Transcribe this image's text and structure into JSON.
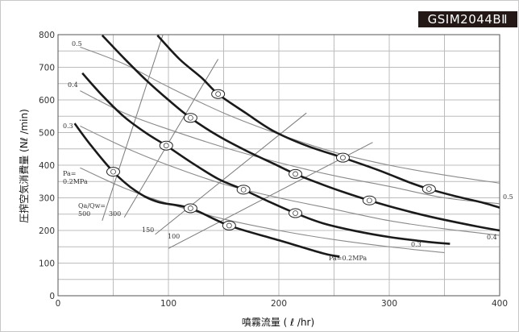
{
  "badge": "GSIM2044BⅡ",
  "chart_data": {
    "type": "line",
    "title": "",
    "xlabel": "噴霧流量 ( ℓ /hr)",
    "ylabel": "圧搾空気消費量 (Nℓ /min)",
    "xlim": [
      0,
      400
    ],
    "ylim": [
      0,
      800
    ],
    "x_ticks": [
      "0",
      "100",
      "200",
      "300",
      "400"
    ],
    "y_ticks": [
      "0",
      "100",
      "200",
      "300",
      "400",
      "500",
      "600",
      "700",
      "800"
    ],
    "grid": true,
    "pressure_labels_left": [
      "0.5",
      "0.4",
      "0.3",
      "Pa=",
      "0.2MPa"
    ],
    "pressure_labels_right": [
      "0.5",
      "0.4",
      "0.3",
      "Pa=0.2MPa"
    ],
    "ratio_labels": [
      "Qa/Qw=",
      "500",
      "300",
      "150",
      "100"
    ],
    "series": [
      {
        "role": "nozzle",
        "marked_points": [
          [
            50,
            380
          ],
          [
            120,
            268
          ],
          [
            155,
            215
          ]
        ],
        "points": [
          [
            15,
            528
          ],
          [
            30,
            460
          ],
          [
            50,
            380
          ],
          [
            70,
            322
          ],
          [
            90,
            288
          ],
          [
            120,
            268
          ],
          [
            155,
            215
          ],
          [
            200,
            170
          ],
          [
            240,
            130
          ],
          [
            255,
            120
          ]
        ]
      },
      {
        "role": "nozzle",
        "marked_points": [
          [
            98,
            460
          ],
          [
            168,
            325
          ],
          [
            215,
            253
          ]
        ],
        "points": [
          [
            22,
            682
          ],
          [
            40,
            614
          ],
          [
            60,
            548
          ],
          [
            80,
            498
          ],
          [
            98,
            460
          ],
          [
            120,
            410
          ],
          [
            145,
            358
          ],
          [
            168,
            325
          ],
          [
            190,
            290
          ],
          [
            215,
            253
          ],
          [
            240,
            222
          ],
          [
            270,
            198
          ],
          [
            300,
            180
          ],
          [
            335,
            165
          ],
          [
            355,
            159
          ]
        ]
      },
      {
        "role": "nozzle",
        "marked_points": [
          [
            120,
            545
          ],
          [
            215,
            373
          ],
          [
            282,
            292
          ]
        ],
        "points": [
          [
            40,
            798
          ],
          [
            60,
            727
          ],
          [
            80,
            660
          ],
          [
            100,
            600
          ],
          [
            120,
            545
          ],
          [
            145,
            490
          ],
          [
            170,
            445
          ],
          [
            195,
            405
          ],
          [
            215,
            373
          ],
          [
            240,
            340
          ],
          [
            260,
            316
          ],
          [
            282,
            292
          ],
          [
            310,
            265
          ],
          [
            340,
            240
          ],
          [
            380,
            212
          ],
          [
            400,
            200
          ]
        ]
      },
      {
        "role": "nozzle",
        "marked_points": [
          [
            145,
            618
          ],
          [
            258,
            423
          ],
          [
            336,
            327
          ]
        ],
        "points": [
          [
            90,
            798
          ],
          [
            110,
            725
          ],
          [
            130,
            668
          ],
          [
            145,
            618
          ],
          [
            170,
            560
          ],
          [
            195,
            505
          ],
          [
            225,
            460
          ],
          [
            258,
            423
          ],
          [
            290,
            385
          ],
          [
            320,
            345
          ],
          [
            336,
            327
          ],
          [
            360,
            305
          ],
          [
            385,
            285
          ],
          [
            400,
            270
          ]
        ]
      },
      {
        "role": "pressure",
        "name": "0.5",
        "points": [
          [
            20,
            762
          ],
          [
            60,
            710
          ],
          [
            100,
            640
          ],
          [
            150,
            560
          ],
          [
            200,
            495
          ],
          [
            250,
            440
          ],
          [
            300,
            400
          ],
          [
            350,
            370
          ],
          [
            400,
            345
          ]
        ]
      },
      {
        "role": "pressure",
        "name": "0.4",
        "points": [
          [
            20,
            628
          ],
          [
            60,
            560
          ],
          [
            100,
            510
          ],
          [
            150,
            455
          ],
          [
            200,
            408
          ],
          [
            250,
            368
          ],
          [
            300,
            335
          ],
          [
            350,
            300
          ],
          [
            400,
            282
          ]
        ]
      },
      {
        "role": "pressure",
        "name": "0.3",
        "points": [
          [
            20,
            520
          ],
          [
            60,
            455
          ],
          [
            100,
            400
          ],
          [
            150,
            342
          ],
          [
            200,
            300
          ],
          [
            250,
            265
          ],
          [
            300,
            230
          ],
          [
            350,
            205
          ],
          [
            400,
            185
          ]
        ]
      },
      {
        "role": "pressure",
        "name": "Pa=0.2MPa",
        "points": [
          [
            20,
            392
          ],
          [
            60,
            330
          ],
          [
            100,
            282
          ],
          [
            150,
            235
          ],
          [
            200,
            200
          ],
          [
            250,
            172
          ],
          [
            300,
            150
          ],
          [
            350,
            132
          ]
        ]
      },
      {
        "role": "ratio",
        "name": "Qa/Qw=500",
        "points": [
          [
            40,
            230
          ],
          [
            95,
            800
          ]
        ]
      },
      {
        "role": "ratio",
        "name": "300",
        "points": [
          [
            60,
            240
          ],
          [
            145,
            725
          ]
        ]
      },
      {
        "role": "ratio",
        "name": "150",
        "points": [
          [
            88,
            188
          ],
          [
            225,
            560
          ]
        ]
      },
      {
        "role": "ratio",
        "name": "100",
        "points": [
          [
            100,
            145
          ],
          [
            285,
            470
          ]
        ]
      }
    ]
  }
}
